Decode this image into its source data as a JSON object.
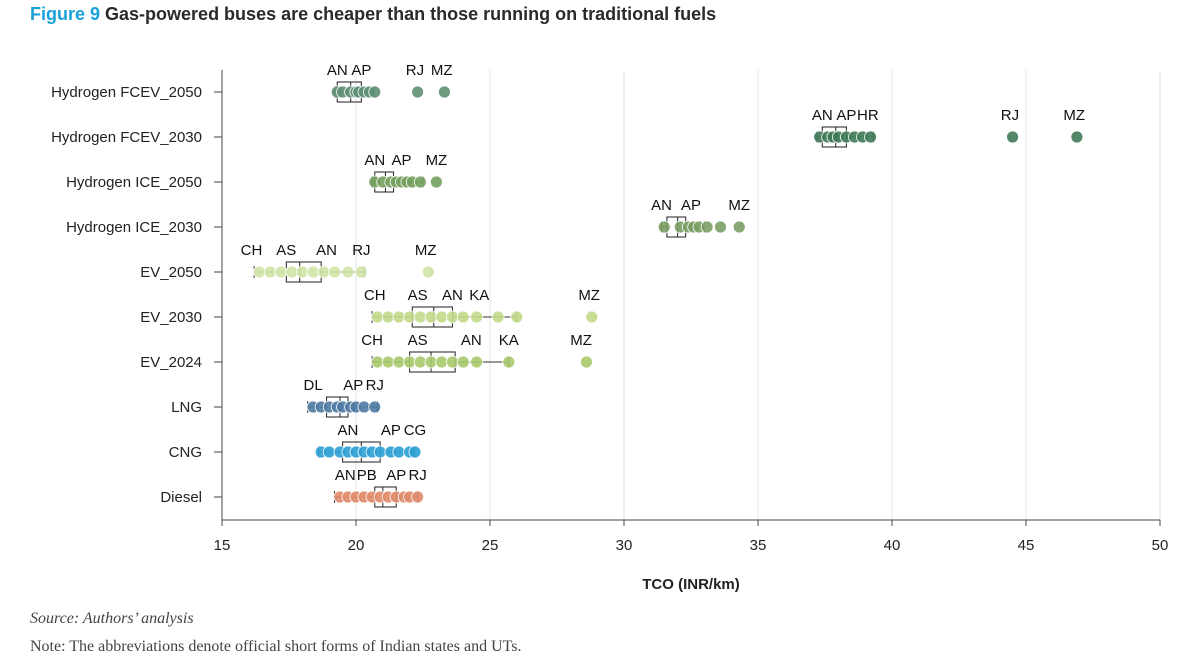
{
  "figure": {
    "label": "Figure 9",
    "title": "Gas-powered buses are cheaper than those running on traditional fuels",
    "source": "Source: Authors’ analysis",
    "note": "Note: The abbreviations denote official short forms of Indian states and UTs."
  },
  "chart_data": {
    "type": "box-strip",
    "xlabel": "TCO (INR/km)",
    "ylabel": "",
    "xlim": [
      15,
      50
    ],
    "xticks": [
      15,
      20,
      25,
      30,
      35,
      40,
      45,
      50
    ],
    "grid": "vertical",
    "categories": [
      "Hydrogen FCEV_2050",
      "Hydrogen FCEV_2030",
      "Hydrogen ICE_2050",
      "Hydrogen ICE_2030",
      "EV_2050",
      "EV_2030",
      "EV_2024",
      "LNG",
      "CNG",
      "Diesel"
    ],
    "series": [
      {
        "category": "Hydrogen FCEV_2050",
        "color": "#5e8f72",
        "box": {
          "min": 19.2,
          "q1": 19.3,
          "median": 19.8,
          "q3": 20.2,
          "max": 20.7
        },
        "points": [
          19.3,
          19.5,
          19.8,
          20.0,
          20.1,
          20.3,
          20.5,
          20.7,
          22.3,
          23.3
        ],
        "labels": [
          {
            "text": "AN",
            "x": 19.3
          },
          {
            "text": "AP",
            "x": 20.2
          },
          {
            "text": "RJ",
            "x": 22.2
          },
          {
            "text": "MZ",
            "x": 23.2
          }
        ]
      },
      {
        "category": "Hydrogen FCEV_2030",
        "color": "#3f7a57",
        "box": {
          "min": 37.2,
          "q1": 37.4,
          "median": 37.9,
          "q3": 38.3,
          "max": 39.3
        },
        "points": [
          37.3,
          37.6,
          37.8,
          38.0,
          38.3,
          38.6,
          38.9,
          39.2,
          44.5,
          46.9
        ],
        "labels": [
          {
            "text": "AN",
            "x": 37.4
          },
          {
            "text": "AP",
            "x": 38.3
          },
          {
            "text": "HR",
            "x": 39.1
          },
          {
            "text": "RJ",
            "x": 44.4
          },
          {
            "text": "MZ",
            "x": 46.8
          }
        ]
      },
      {
        "category": "Hydrogen ICE_2050",
        "color": "#74a05e",
        "box": {
          "min": 20.6,
          "q1": 20.7,
          "median": 21.1,
          "q3": 21.4,
          "max": 22.5
        },
        "points": [
          20.7,
          21.0,
          21.3,
          21.5,
          21.7,
          21.9,
          22.1,
          22.4,
          23.0
        ],
        "labels": [
          {
            "text": "AN",
            "x": 20.7
          },
          {
            "text": "AP",
            "x": 21.7
          },
          {
            "text": "MZ",
            "x": 23.0
          }
        ]
      },
      {
        "category": "Hydrogen ICE_2030",
        "color": "#7a9e64",
        "box": {
          "min": 31.4,
          "q1": 31.6,
          "median": 32.0,
          "q3": 32.3,
          "max": 33.0
        },
        "points": [
          31.5,
          32.1,
          32.4,
          32.6,
          32.8,
          33.1,
          33.6,
          34.3
        ],
        "labels": [
          {
            "text": "AN",
            "x": 31.4
          },
          {
            "text": "AP",
            "x": 32.5
          },
          {
            "text": "MZ",
            "x": 34.3
          }
        ]
      },
      {
        "category": "EV_2050",
        "color": "#d2e4a8",
        "box": {
          "min": 16.2,
          "q1": 17.4,
          "median": 17.9,
          "q3": 18.7,
          "max": 20.3
        },
        "points": [
          16.4,
          16.8,
          17.2,
          17.6,
          18.0,
          18.4,
          18.8,
          19.2,
          19.7,
          20.2,
          22.7
        ],
        "labels": [
          {
            "text": "CH",
            "x": 16.1
          },
          {
            "text": "AS",
            "x": 17.4
          },
          {
            "text": "AN",
            "x": 18.9
          },
          {
            "text": "RJ",
            "x": 20.2
          },
          {
            "text": "MZ",
            "x": 22.6
          }
        ]
      },
      {
        "category": "EV_2030",
        "color": "#c3da8a",
        "box": {
          "min": 20.6,
          "q1": 22.1,
          "median": 22.9,
          "q3": 23.6,
          "max": 26.0
        },
        "points": [
          20.8,
          21.2,
          21.6,
          22.0,
          22.4,
          22.8,
          23.2,
          23.6,
          24.0,
          24.5,
          25.3,
          26.0,
          28.8
        ],
        "labels": [
          {
            "text": "CH",
            "x": 20.7
          },
          {
            "text": "AS",
            "x": 22.3
          },
          {
            "text": "AN",
            "x": 23.6
          },
          {
            "text": "KA",
            "x": 24.6
          },
          {
            "text": "MZ",
            "x": 28.7
          }
        ]
      },
      {
        "category": "EV_2024",
        "color": "#a9c96b",
        "box": {
          "min": 20.6,
          "q1": 22.0,
          "median": 22.8,
          "q3": 23.7,
          "max": 25.7
        },
        "points": [
          20.8,
          21.2,
          21.6,
          22.0,
          22.4,
          22.8,
          23.2,
          23.6,
          24.0,
          24.5,
          25.7,
          28.6
        ],
        "labels": [
          {
            "text": "CH",
            "x": 20.6
          },
          {
            "text": "AS",
            "x": 22.3
          },
          {
            "text": "AN",
            "x": 24.3
          },
          {
            "text": "KA",
            "x": 25.7
          },
          {
            "text": "MZ",
            "x": 28.4
          }
        ]
      },
      {
        "category": "LNG",
        "color": "#4f7aa3",
        "box": {
          "min": 18.2,
          "q1": 18.9,
          "median": 19.4,
          "q3": 19.7,
          "max": 20.8
        },
        "points": [
          18.4,
          18.7,
          19.0,
          19.3,
          19.5,
          19.8,
          20.0,
          20.3,
          20.7
        ],
        "labels": [
          {
            "text": "DL",
            "x": 18.4
          },
          {
            "text": "AP",
            "x": 19.9
          },
          {
            "text": "RJ",
            "x": 20.7
          }
        ]
      },
      {
        "category": "CNG",
        "color": "#2aa0d4",
        "box": {
          "min": 18.6,
          "q1": 19.5,
          "median": 20.2,
          "q3": 20.9,
          "max": 22.2
        },
        "points": [
          18.7,
          19.0,
          19.4,
          19.7,
          20.0,
          20.3,
          20.6,
          20.9,
          21.3,
          21.6,
          22.0,
          22.2
        ],
        "labels": [
          {
            "text": "AN",
            "x": 19.7
          },
          {
            "text": "AP",
            "x": 21.3
          },
          {
            "text": "CG",
            "x": 22.2
          }
        ]
      },
      {
        "category": "Diesel",
        "color": "#e08a6a",
        "box": {
          "min": 19.2,
          "q1": 20.7,
          "median": 21.0,
          "q3": 21.5,
          "max": 22.3
        },
        "points": [
          19.4,
          19.7,
          20.0,
          20.3,
          20.6,
          20.9,
          21.2,
          21.5,
          21.8,
          22.0,
          22.3
        ],
        "labels": [
          {
            "text": "AN",
            "x": 19.6
          },
          {
            "text": "PB",
            "x": 20.4
          },
          {
            "text": "AP",
            "x": 21.5
          },
          {
            "text": "RJ",
            "x": 22.3
          }
        ]
      }
    ]
  }
}
